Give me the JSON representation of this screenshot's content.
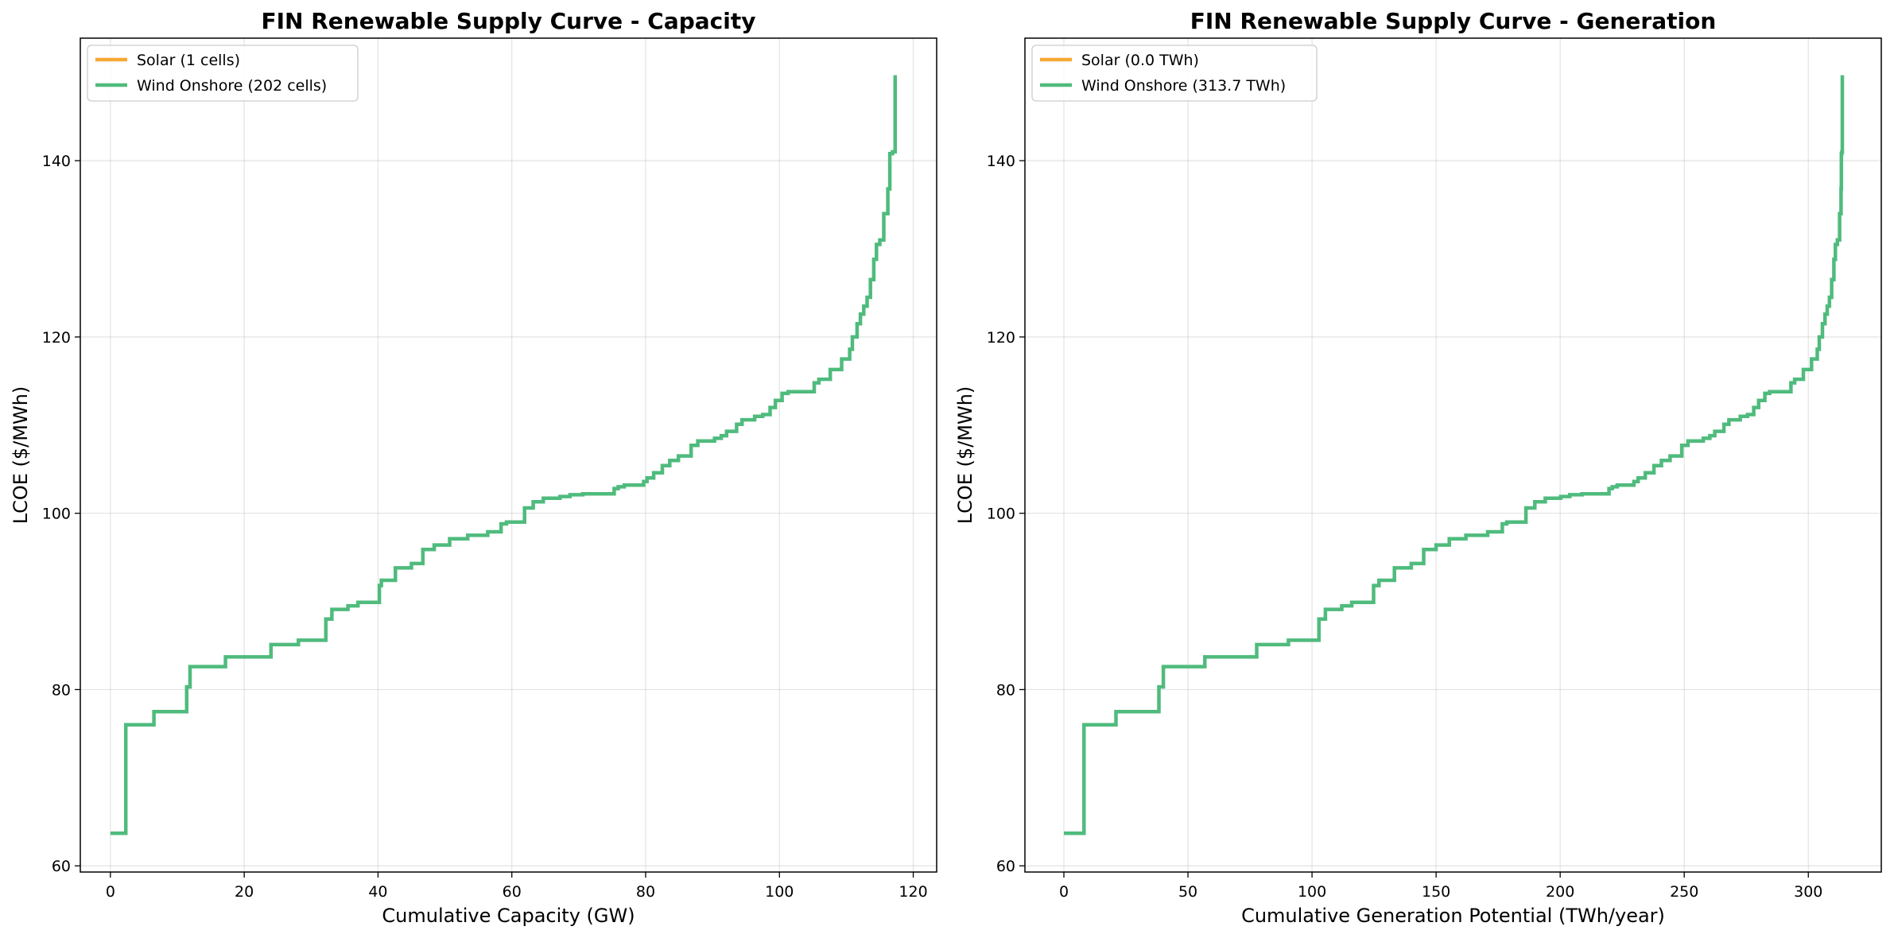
{
  "chart_data": [
    {
      "type": "line",
      "title": "FIN Renewable Supply Curve - Capacity",
      "xlabel": "Cumulative Capacity (GW)",
      "ylabel": "LCOE ($/MWh)",
      "xlim": [
        -4.5,
        123.5
      ],
      "ylim": [
        59.3,
        153.9
      ],
      "xticks": [
        0,
        20,
        40,
        60,
        80,
        100,
        120
      ],
      "yticks": [
        60,
        80,
        100,
        120,
        140
      ],
      "grid": true,
      "legend_position": "top-left",
      "step": "post",
      "series": [
        {
          "name": "Solar (1 cells)",
          "color": "#f5a833",
          "x": [],
          "y": []
        },
        {
          "name": "Wind Onshore (202 cells)",
          "color": "#4fbb7d",
          "x": [
            0,
            2.3,
            6.5,
            11.4,
            11.9,
            17.2,
            24.0,
            28.1,
            32.2,
            33.1,
            35.5,
            37.0,
            40.2,
            40.5,
            42.6,
            45.0,
            46.7,
            48.4,
            50.7,
            53.4,
            56.4,
            58.4,
            59.2,
            61.9,
            63.2,
            64.7,
            67.2,
            68.7,
            70.6,
            75.3,
            75.9,
            76.8,
            79.7,
            80.2,
            81.2,
            82.5,
            83.6,
            84.9,
            86.8,
            87.8,
            90.3,
            91.3,
            92.1,
            93.6,
            94.4,
            96.3,
            97.5,
            98.6,
            99.4,
            100.4,
            101.3,
            105.2,
            105.9,
            107.6,
            109.3,
            110.5,
            110.9,
            111.6,
            112.1,
            112.6,
            113.1,
            113.6,
            114.1,
            114.5,
            115.0,
            115.6,
            116.2,
            116.5,
            116.9,
            117.3,
            117.3
          ],
          "y": [
            63.7,
            76.0,
            77.5,
            80.3,
            82.6,
            83.7,
            85.1,
            85.6,
            88.0,
            89.1,
            89.5,
            89.9,
            91.8,
            92.4,
            93.8,
            94.3,
            95.9,
            96.4,
            97.1,
            97.5,
            97.9,
            98.8,
            99.0,
            100.6,
            101.3,
            101.7,
            101.9,
            102.1,
            102.2,
            102.8,
            103.0,
            103.2,
            103.6,
            104.0,
            104.6,
            105.4,
            106.0,
            106.5,
            107.7,
            108.2,
            108.5,
            108.8,
            109.3,
            110.1,
            110.6,
            111.0,
            111.2,
            112.0,
            112.8,
            113.6,
            113.8,
            114.8,
            115.2,
            116.3,
            117.5,
            118.6,
            120.0,
            121.5,
            122.6,
            123.5,
            124.5,
            126.5,
            128.8,
            130.5,
            131.0,
            134.0,
            136.8,
            140.8,
            141.0,
            149.7,
            149.7
          ]
        }
      ]
    },
    {
      "type": "line",
      "title": "FIN Renewable Supply Curve - Generation",
      "xlabel": "Cumulative Generation Potential (TWh/year)",
      "ylabel": "LCOE ($/MWh)",
      "xlim": [
        -15.7,
        329.4
      ],
      "ylim": [
        59.3,
        153.9
      ],
      "xticks": [
        0,
        50,
        100,
        150,
        200,
        250,
        300
      ],
      "yticks": [
        60,
        80,
        100,
        120,
        140
      ],
      "grid": true,
      "legend_position": "top-left",
      "step": "post",
      "series": [
        {
          "name": "Solar (0.0 TWh)",
          "color": "#f5a833",
          "x": [],
          "y": []
        },
        {
          "name": "Wind Onshore (313.7 TWh)",
          "color": "#4fbb7d",
          "x": [
            0,
            8.1,
            21.0,
            38.3,
            40.1,
            56.8,
            77.7,
            90.5,
            102.8,
            105.4,
            112.0,
            116.0,
            124.8,
            127.0,
            133.2,
            140.0,
            145.0,
            150.0,
            155.3,
            162.0,
            170.8,
            176.7,
            178.5,
            186.2,
            189.8,
            194.0,
            200.2,
            203.9,
            208.8,
            219.7,
            221.0,
            223.0,
            229.7,
            231.4,
            234.3,
            237.8,
            240.8,
            244.3,
            249.0,
            251.5,
            257.7,
            260.3,
            262.3,
            266.0,
            268.0,
            272.6,
            275.5,
            278.0,
            280.0,
            282.5,
            284.4,
            293.0,
            294.5,
            298.0,
            301.3,
            303.6,
            304.4,
            305.7,
            306.7,
            307.6,
            308.5,
            309.4,
            310.3,
            310.9,
            311.7,
            312.6,
            313.2,
            313.3,
            313.5,
            313.7,
            313.7
          ],
          "y": [
            63.7,
            76.0,
            77.5,
            80.3,
            82.6,
            83.7,
            85.1,
            85.6,
            88.0,
            89.1,
            89.5,
            89.9,
            91.8,
            92.4,
            93.8,
            94.3,
            95.9,
            96.4,
            97.1,
            97.5,
            97.9,
            98.8,
            99.0,
            100.6,
            101.3,
            101.7,
            101.9,
            102.1,
            102.2,
            102.8,
            103.0,
            103.2,
            103.6,
            104.0,
            104.6,
            105.4,
            106.0,
            106.5,
            107.7,
            108.2,
            108.5,
            108.8,
            109.3,
            110.1,
            110.6,
            111.0,
            111.2,
            112.0,
            112.8,
            113.6,
            113.8,
            114.8,
            115.2,
            116.3,
            117.5,
            118.6,
            120.0,
            121.5,
            122.6,
            123.5,
            124.5,
            126.5,
            128.8,
            130.5,
            131.0,
            134.0,
            136.8,
            140.8,
            141.0,
            149.7,
            149.7
          ]
        }
      ]
    }
  ]
}
